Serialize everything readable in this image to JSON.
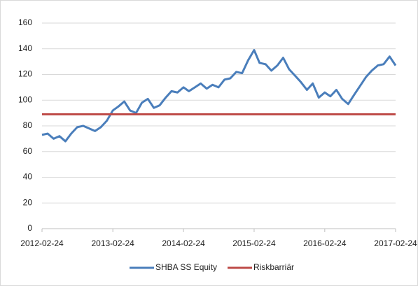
{
  "chart_data": {
    "type": "line",
    "series": [
      {
        "name": "SHBA SS Equity",
        "color": "#4a7ebb",
        "x": [
          "2012-02-24",
          "2012-03-24",
          "2012-04-24",
          "2012-05-24",
          "2012-06-24",
          "2012-07-24",
          "2012-08-24",
          "2012-09-24",
          "2012-10-24",
          "2012-11-24",
          "2012-12-24",
          "2013-01-24",
          "2013-02-24",
          "2013-03-24",
          "2013-04-24",
          "2013-05-24",
          "2013-06-24",
          "2013-07-24",
          "2013-08-24",
          "2013-09-24",
          "2013-10-24",
          "2013-11-24",
          "2013-12-24",
          "2014-01-24",
          "2014-02-24",
          "2014-03-24",
          "2014-04-24",
          "2014-05-24",
          "2014-06-24",
          "2014-07-24",
          "2014-08-24",
          "2014-09-24",
          "2014-10-24",
          "2014-11-24",
          "2014-12-24",
          "2015-01-24",
          "2015-02-24",
          "2015-03-24",
          "2015-04-24",
          "2015-05-24",
          "2015-06-24",
          "2015-07-24",
          "2015-08-24",
          "2015-09-24",
          "2015-10-24",
          "2015-11-24",
          "2015-12-24",
          "2016-01-24",
          "2016-02-24",
          "2016-03-24",
          "2016-04-24",
          "2016-05-24",
          "2016-06-24",
          "2016-07-24",
          "2016-08-24",
          "2016-09-24",
          "2016-10-24",
          "2016-11-24",
          "2016-12-24",
          "2017-01-24",
          "2017-02-24"
        ],
        "values": [
          73,
          74,
          70,
          72,
          68,
          74,
          79,
          80,
          78,
          76,
          79,
          84,
          92,
          95,
          99,
          92,
          90,
          98,
          101,
          94,
          96,
          102,
          107,
          106,
          110,
          107,
          110,
          113,
          109,
          112,
          110,
          116,
          117,
          122,
          121,
          131,
          139,
          129,
          128,
          123,
          127,
          133,
          124,
          119,
          114,
          108,
          113,
          102,
          106,
          103,
          108,
          101,
          97,
          104,
          111,
          118,
          123,
          127,
          128,
          134,
          127
        ]
      },
      {
        "name": "Riskbarriär",
        "color": "#be4b48",
        "x": [
          "2012-02-24",
          "2017-02-24"
        ],
        "values": [
          89,
          89
        ]
      }
    ],
    "xlim": [
      "2012-02-24",
      "2017-02-24"
    ],
    "xticks": [
      "2012-02-24",
      "2013-02-24",
      "2014-02-24",
      "2015-02-24",
      "2016-02-24",
      "2017-02-24"
    ],
    "ylim": [
      0,
      160
    ],
    "yticks": [
      0,
      20,
      40,
      60,
      80,
      100,
      120,
      140,
      160
    ],
    "grid": true,
    "legend": "bottom"
  }
}
